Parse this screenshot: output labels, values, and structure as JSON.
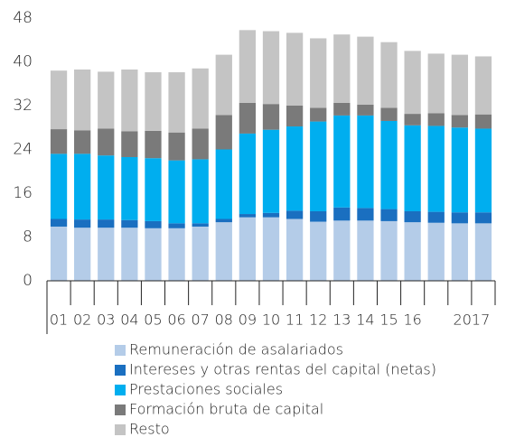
{
  "chart_data": {
    "type": "stacked_bar",
    "categories": [
      "01",
      "02",
      "03",
      "04",
      "05",
      "06",
      "07",
      "08",
      "09",
      "10",
      "11",
      "12",
      "13",
      "14",
      "15",
      "16",
      null,
      "2017",
      null
    ],
    "series": [
      {
        "name": "Remuneración de asalariados",
        "color": "#b4cce8",
        "values": [
          9.9,
          9.7,
          9.7,
          9.7,
          9.6,
          9.6,
          9.9,
          10.7,
          11.6,
          11.6,
          11.3,
          10.8,
          11.0,
          11.0,
          10.9,
          10.7,
          10.6,
          10.5,
          10.5
        ]
      },
      {
        "name": "Intereses y otras rentas del capital (netas)",
        "color": "#1a6fc0",
        "values": [
          1.4,
          1.5,
          1.5,
          1.4,
          1.3,
          0.9,
          0.6,
          0.6,
          0.6,
          0.8,
          1.5,
          1.9,
          2.4,
          2.3,
          2.2,
          2.0,
          2.0,
          2.0,
          2.0
        ]
      },
      {
        "name": "Prestaciones sociales",
        "color": "#00aeef",
        "values": [
          11.9,
          12.0,
          11.7,
          11.5,
          11.5,
          11.5,
          11.7,
          12.7,
          14.7,
          15.2,
          15.4,
          16.4,
          16.8,
          16.9,
          16.1,
          15.7,
          15.7,
          15.5,
          15.3
        ]
      },
      {
        "name": "Formación bruta de capital",
        "color": "#7a7a7a",
        "values": [
          4.5,
          4.3,
          4.9,
          4.7,
          5.0,
          5.1,
          5.6,
          6.3,
          5.6,
          4.7,
          3.8,
          2.5,
          2.3,
          2.0,
          2.4,
          2.1,
          2.3,
          2.3,
          2.6
        ]
      },
      {
        "name": "Resto",
        "color": "#c4c4c4",
        "values": [
          10.7,
          11.1,
          10.4,
          11.3,
          10.7,
          11.0,
          11.0,
          11.0,
          13.3,
          13.3,
          13.3,
          12.7,
          12.5,
          12.4,
          12.0,
          11.5,
          10.9,
          11.0,
          10.6
        ]
      }
    ],
    "ylim": [
      0,
      48
    ],
    "yticks": [
      0,
      8,
      16,
      24,
      32,
      40,
      48
    ],
    "grid": false
  }
}
